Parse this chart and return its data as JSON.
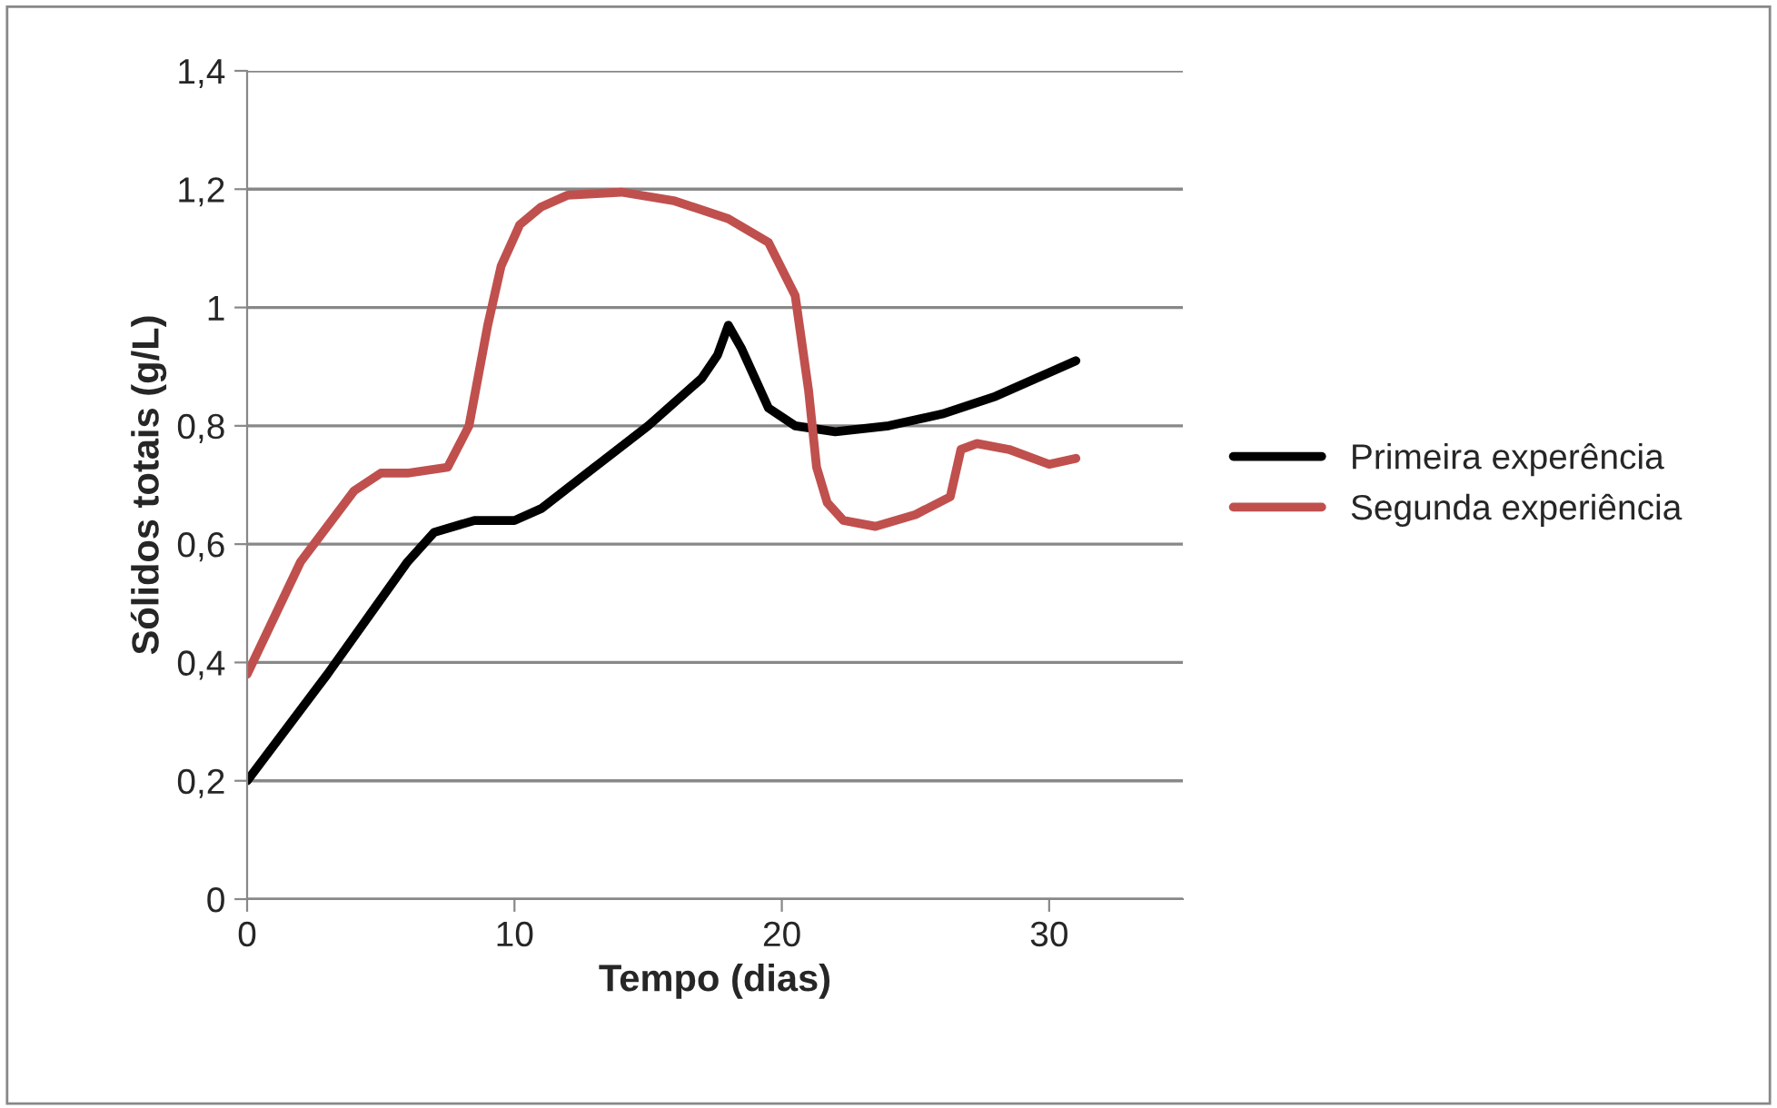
{
  "chart_data": {
    "type": "line",
    "xlabel": "Tempo (dias)",
    "ylabel": "Sólidos totais (g/L)",
    "xlim": [
      0,
      35
    ],
    "xticks": [
      0,
      10,
      20,
      30
    ],
    "ylim": [
      0,
      1.4
    ],
    "yticks": [
      0,
      {
        "value": 0.2,
        "label": "0,2"
      },
      {
        "value": 0.4,
        "label": "0,4"
      },
      {
        "value": 0.6,
        "label": "0,6"
      },
      {
        "value": 0.8,
        "label": "0,8"
      },
      1,
      {
        "value": 1.2,
        "label": "1,2"
      },
      {
        "value": 1.4,
        "label": "1,4"
      }
    ],
    "grid": "y",
    "legend": "right",
    "line_style": "solid",
    "marker": "none",
    "series": [
      {
        "name": "Primeira experência",
        "color": "#000000",
        "x": [
          0,
          3,
          6,
          7,
          8.5,
          10,
          11,
          13,
          15,
          17,
          17.6,
          18,
          18.5,
          19.5,
          20.5,
          22,
          24,
          26,
          28,
          30,
          31
        ],
        "values": [
          0.2,
          0.38,
          0.57,
          0.62,
          0.64,
          0.64,
          0.66,
          0.73,
          0.8,
          0.88,
          0.92,
          0.97,
          0.93,
          0.83,
          0.8,
          0.79,
          0.8,
          0.82,
          0.85,
          0.89,
          0.91
        ]
      },
      {
        "name": "Segunda experiência",
        "color": "#c0504d",
        "x": [
          0,
          2,
          4,
          5,
          6,
          7.5,
          8.3,
          9,
          9.5,
          10.2,
          11,
          12,
          14,
          16,
          18,
          19.5,
          20.5,
          21,
          21.3,
          21.7,
          22.3,
          23.5,
          25,
          26.3,
          26.7,
          27.3,
          28.5,
          30,
          31
        ],
        "values": [
          0.38,
          0.57,
          0.69,
          0.72,
          0.72,
          0.73,
          0.8,
          0.97,
          1.07,
          1.14,
          1.17,
          1.19,
          1.195,
          1.18,
          1.15,
          1.11,
          1.02,
          0.86,
          0.73,
          0.67,
          0.64,
          0.63,
          0.65,
          0.68,
          0.76,
          0.77,
          0.76,
          0.735,
          0.745
        ]
      }
    ]
  }
}
